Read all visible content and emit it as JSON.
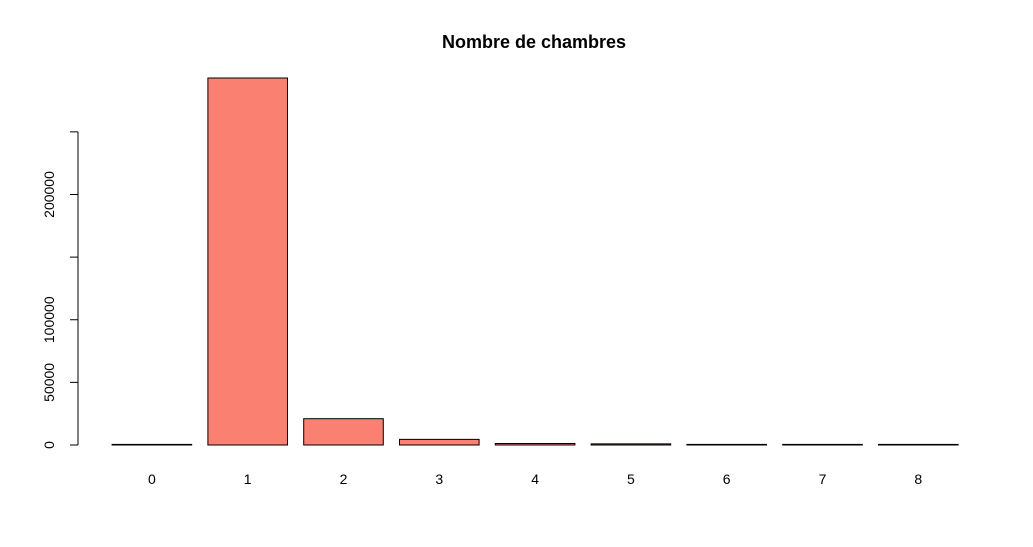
{
  "chart_data": {
    "type": "bar",
    "title": "Nombre de chambres",
    "xlabel": "",
    "ylabel": "",
    "categories": [
      "0",
      "1",
      "2",
      "3",
      "4",
      "5",
      "6",
      "7",
      "8"
    ],
    "values": [
      300,
      293000,
      21000,
      4500,
      1200,
      900,
      300,
      200,
      150
    ],
    "ylim": [
      0,
      293000
    ],
    "yticks": [
      0,
      50000,
      100000,
      150000,
      200000,
      250000
    ],
    "ytick_labels": [
      "0",
      "50000",
      "100000",
      "",
      "200000",
      ""
    ],
    "grid": false,
    "bar_color": "#FA8072",
    "edge_color": "#000000"
  }
}
